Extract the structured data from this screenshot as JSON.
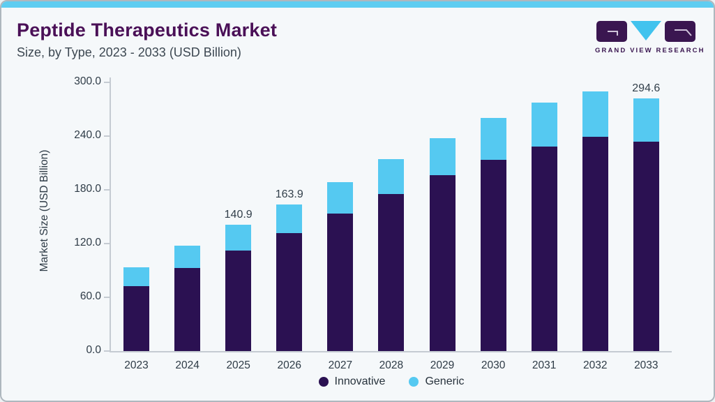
{
  "header": {
    "title": "Peptide Therapeutics Market",
    "subtitle": "Size, by Type, 2023 - 2033 (USD Billion)"
  },
  "logo": {
    "text": "GRAND VIEW RESEARCH"
  },
  "colors": {
    "innovative": "#2b1152",
    "generic": "#55c9f1",
    "accent_strip": "#5ecdf1",
    "title_text": "#4a1057",
    "background": "#f5f8fa",
    "axis_line": "#c5cbd2",
    "logo_purple": "#3a1650",
    "logo_cyan": "#41c3ee"
  },
  "chart_data": {
    "type": "bar",
    "stacked": true,
    "title": "Peptide Therapeutics Market Size, by Type, 2023 - 2033 (USD Billion)",
    "categories": [
      "2023",
      "2024",
      "2025",
      "2026",
      "2027",
      "2028",
      "2029",
      "2030",
      "2031",
      "2032",
      "2033"
    ],
    "series": [
      {
        "name": "Innovative",
        "color": "#2b1152",
        "values": [
          72.7,
          92.5,
          112.0,
          131.8,
          153.3,
          175.4,
          196.1,
          213.5,
          228.6,
          239.0,
          244.1
        ]
      },
      {
        "name": "Generic",
        "color": "#55c9f1",
        "values": [
          21.1,
          25.2,
          28.9,
          32.1,
          35.6,
          38.8,
          41.9,
          46.5,
          49.1,
          50.9,
          50.5
        ]
      }
    ],
    "totals": [
      93.8,
      117.7,
      140.9,
      163.9,
      188.9,
      214.2,
      238.0,
      260.0,
      277.7,
      289.9,
      294.6
    ],
    "data_labels": [
      "",
      "",
      "140.9",
      "163.9",
      "",
      "",
      "",
      "",
      "",
      "",
      "294.6"
    ],
    "ylabel": "Market Size (USD Billion)",
    "ylim": [
      0,
      300
    ],
    "yticks": [
      "300.0",
      "240.0",
      "180.0",
      "120.0",
      "60.0",
      "0.0"
    ],
    "grid": false,
    "legend": [
      "Innovative",
      "Generic"
    ],
    "legend_position": "bottom"
  }
}
